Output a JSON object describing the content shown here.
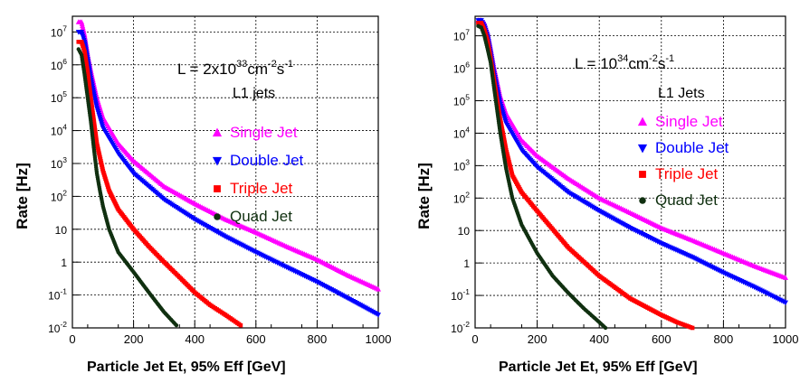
{
  "chart_data": [
    {
      "type": "scatter",
      "xlabel": "Particle Jet Et, 95% Eff [GeV]",
      "ylabel": "Rate [Hz]",
      "xlim": [
        0,
        1000
      ],
      "yscale": "log",
      "ylim": [
        0.01,
        30000000
      ],
      "grid": true,
      "x_ticks": [
        "0",
        "200",
        "400",
        "600",
        "800",
        "1000"
      ],
      "y_ticks": [
        {
          "v": 0.01,
          "base": "10",
          "exp": "-2"
        },
        {
          "v": 0.1,
          "base": "10",
          "exp": "-1"
        },
        {
          "v": 1,
          "base": "1",
          "exp": ""
        },
        {
          "v": 10,
          "base": "10",
          "exp": ""
        },
        {
          "v": 100,
          "base": "10",
          "exp": "2"
        },
        {
          "v": 1000,
          "base": "10",
          "exp": "3"
        },
        {
          "v": 10000,
          "base": "10",
          "exp": "4"
        },
        {
          "v": 100000,
          "base": "10",
          "exp": "5"
        },
        {
          "v": 1000000,
          "base": "10",
          "exp": "6"
        },
        {
          "v": 10000000,
          "base": "10",
          "exp": "7"
        }
      ],
      "annotation": {
        "prefix": "L = 2x10",
        "exp1": "33",
        "mid": "cm",
        "exp2": "-2",
        "mid2": "s",
        "exp3": "-1"
      },
      "legend_title": "L1 jets",
      "legend_placement": "center-right",
      "series": [
        {
          "name": "Single Jet",
          "color": "#ff00ff",
          "marker": "triangle-up",
          "x": [
            20,
            30,
            40,
            50,
            60,
            80,
            100,
            150,
            200,
            300,
            400,
            500,
            600,
            700,
            800,
            900,
            1000
          ],
          "y": [
            20000000,
            20000000,
            8000000,
            2000000,
            700000,
            100000,
            25000,
            4000,
            1200,
            200,
            60,
            20,
            8,
            3,
            1.2,
            0.4,
            0.15
          ]
        },
        {
          "name": "Double Jet",
          "color": "#0000ff",
          "marker": "triangle-down",
          "x": [
            20,
            30,
            40,
            50,
            60,
            80,
            100,
            150,
            200,
            300,
            400,
            500,
            600,
            700,
            800,
            900,
            1000
          ],
          "y": [
            10000000,
            10000000,
            5000000,
            1500000,
            400000,
            50000,
            12000,
            2000,
            500,
            80,
            20,
            6,
            2,
            0.7,
            0.25,
            0.08,
            0.025
          ]
        },
        {
          "name": "Triple Jet",
          "color": "#ff0000",
          "marker": "square",
          "x": [
            20,
            30,
            40,
            50,
            60,
            70,
            80,
            100,
            120,
            150,
            200,
            250,
            300,
            350,
            400,
            450,
            500,
            550
          ],
          "y": [
            5000000,
            5000000,
            2500000,
            600000,
            100000,
            20000,
            4000,
            600,
            150,
            40,
            10,
            3,
            1,
            0.35,
            0.12,
            0.05,
            0.025,
            0.012
          ]
        },
        {
          "name": "Quad Jet",
          "color": "#103010",
          "marker": "circle",
          "x": [
            20,
            30,
            40,
            50,
            60,
            70,
            80,
            90,
            100,
            120,
            150,
            200,
            250,
            300,
            340
          ],
          "y": [
            3000000,
            2000000,
            500000,
            100000,
            20000,
            3000,
            500,
            150,
            50,
            10,
            2,
            0.5,
            0.12,
            0.03,
            0.012
          ]
        }
      ]
    },
    {
      "type": "scatter",
      "xlabel": "Particle Jet Et, 95% Eff [GeV]",
      "ylabel": "Rate [Hz]",
      "xlim": [
        0,
        1000
      ],
      "yscale": "log",
      "ylim": [
        0.01,
        40000000
      ],
      "grid": true,
      "x_ticks": [
        "0",
        "200",
        "400",
        "600",
        "800",
        "1000"
      ],
      "y_ticks": [
        {
          "v": 0.01,
          "base": "10",
          "exp": "-2"
        },
        {
          "v": 0.1,
          "base": "10",
          "exp": "-1"
        },
        {
          "v": 1,
          "base": "1",
          "exp": ""
        },
        {
          "v": 10,
          "base": "10",
          "exp": ""
        },
        {
          "v": 100,
          "base": "10",
          "exp": "2"
        },
        {
          "v": 1000,
          "base": "10",
          "exp": "3"
        },
        {
          "v": 10000,
          "base": "10",
          "exp": "4"
        },
        {
          "v": 100000,
          "base": "10",
          "exp": "5"
        },
        {
          "v": 1000000,
          "base": "10",
          "exp": "6"
        },
        {
          "v": 10000000,
          "base": "10",
          "exp": "7"
        }
      ],
      "annotation": {
        "prefix": "L = 10",
        "exp1": "34",
        "mid": "cm",
        "exp2": "-2",
        "mid2": "s",
        "exp3": "-1"
      },
      "legend_title": "L1 Jets",
      "legend_placement": "center-right",
      "series": [
        {
          "name": "Single Jet",
          "color": "#ff00ff",
          "marker": "triangle-up",
          "x": [
            10,
            20,
            30,
            40,
            50,
            60,
            80,
            100,
            150,
            200,
            300,
            400,
            500,
            600,
            700,
            800,
            900,
            1000
          ],
          "y": [
            30000000,
            30000000,
            25000000,
            12000000,
            4000000,
            1200000,
            150000,
            40000,
            6000,
            2000,
            400,
            100,
            35,
            12,
            5,
            2,
            0.8,
            0.35
          ]
        },
        {
          "name": "Double Jet",
          "color": "#0000ff",
          "marker": "triangle-down",
          "x": [
            10,
            20,
            30,
            40,
            50,
            60,
            80,
            100,
            150,
            200,
            300,
            400,
            500,
            600,
            700,
            800,
            900,
            1000
          ],
          "y": [
            30000000,
            30000000,
            20000000,
            10000000,
            3000000,
            800000,
            90000,
            20000,
            3000,
            900,
            150,
            40,
            12,
            4,
            1.5,
            0.5,
            0.18,
            0.06
          ]
        },
        {
          "name": "Triple Jet",
          "color": "#ff0000",
          "marker": "square",
          "x": [
            10,
            20,
            30,
            40,
            50,
            60,
            70,
            80,
            100,
            120,
            150,
            200,
            300,
            400,
            500,
            600,
            650,
            700
          ],
          "y": [
            25000000,
            25000000,
            15000000,
            7000000,
            2000000,
            500000,
            120000,
            30000,
            3000,
            500,
            150,
            40,
            3,
            0.4,
            0.08,
            0.025,
            0.015,
            0.01
          ]
        },
        {
          "name": "Quad Jet",
          "color": "#103010",
          "marker": "circle",
          "x": [
            10,
            20,
            30,
            40,
            50,
            60,
            70,
            80,
            90,
            100,
            120,
            150,
            200,
            250,
            300,
            350,
            400,
            420
          ],
          "y": [
            20000000,
            18000000,
            10000000,
            4000000,
            1500000,
            300000,
            60000,
            12000,
            3000,
            800,
            100,
            15,
            2,
            0.4,
            0.12,
            0.04,
            0.015,
            0.01
          ]
        }
      ]
    }
  ]
}
